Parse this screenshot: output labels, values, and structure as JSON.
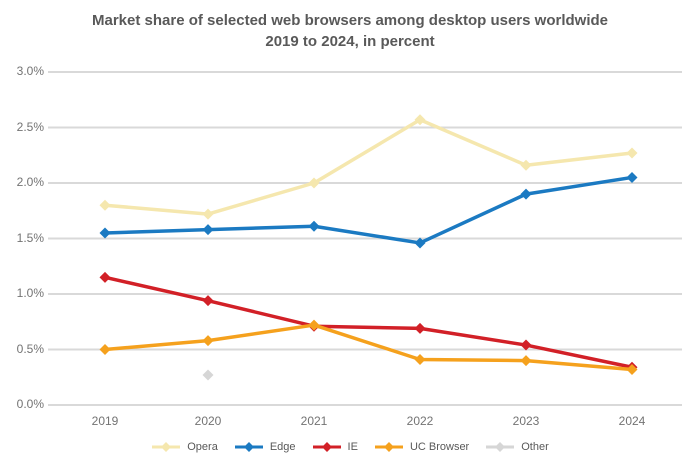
{
  "chart": {
    "title_line1": "Market share of selected web browsers among desktop users worldwide",
    "title_line2": "2019 to 2024, in percent"
  },
  "chart_data": {
    "type": "line",
    "title": "Market share of selected web browsers among desktop users worldwide",
    "subtitle": "2019 to 2024, in percent",
    "categories": [
      "2019",
      "2020",
      "2021",
      "2022",
      "2023",
      "2024"
    ],
    "y_tick_labels": [
      "3.0%",
      "2.5%",
      "2.0%",
      "1.5%",
      "1.0%",
      "0.5%",
      "0.0%"
    ],
    "ylim": [
      0,
      3
    ],
    "grid": true,
    "legend_position": "bottom",
    "series": [
      {
        "name": "Opera",
        "color": "#f5e7ae",
        "values": [
          1.8,
          1.72,
          2.0,
          2.57,
          2.16,
          2.27
        ]
      },
      {
        "name": "Edge",
        "color": "#1b7ac2",
        "values": [
          1.55,
          1.58,
          1.61,
          1.46,
          1.9,
          2.05
        ]
      },
      {
        "name": "IE",
        "color": "#d22027",
        "values": [
          1.15,
          0.94,
          0.71,
          0.69,
          0.54,
          0.34
        ]
      },
      {
        "name": "UC Browser",
        "color": "#f5a11d",
        "values": [
          0.5,
          0.58,
          0.72,
          0.41,
          0.4,
          0.32
        ]
      },
      {
        "name": "Other",
        "color": "#d6d6d6",
        "values": [
          null,
          0.27,
          null,
          null,
          null,
          null
        ]
      }
    ],
    "colors": {
      "gridline": "#d9d9d9",
      "title_text": "#595959",
      "axis_text": "#737373"
    }
  }
}
